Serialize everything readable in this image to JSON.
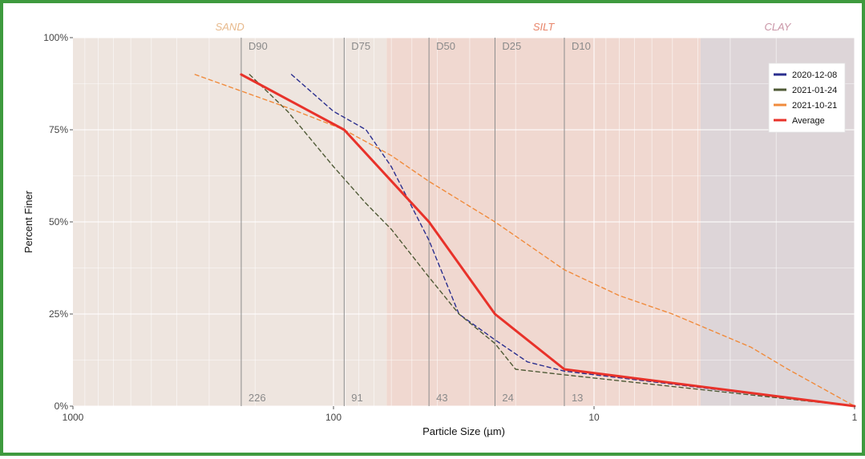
{
  "chart_data": {
    "type": "line",
    "xlabel": "Particle Size (µm)",
    "ylabel": "Percent Finer",
    "x_scale": "log",
    "x_reversed": true,
    "xlim": [
      1000,
      1
    ],
    "ylim": [
      0,
      100
    ],
    "x_ticks": [
      {
        "value": 1000,
        "label": "1000"
      },
      {
        "value": 100,
        "label": "100"
      },
      {
        "value": 10,
        "label": "10"
      },
      {
        "value": 1,
        "label": "1"
      }
    ],
    "y_ticks": [
      {
        "value": 0,
        "label": "0%"
      },
      {
        "value": 25,
        "label": "25%"
      },
      {
        "value": 50,
        "label": "50%"
      },
      {
        "value": 75,
        "label": "75%"
      },
      {
        "value": 100,
        "label": "100%"
      }
    ],
    "zones": [
      {
        "label": "SAND",
        "from": 1000,
        "to": 62.5,
        "color": "#eee5df",
        "label_color": "#e7b98c"
      },
      {
        "label": "SILT",
        "from": 62.5,
        "to": 3.9,
        "color": "#f0d8d0",
        "label_color": "#e8856a"
      },
      {
        "label": "CLAY",
        "from": 3.9,
        "to": 1,
        "color": "#ddd5d8",
        "label_color": "#c995a6"
      }
    ],
    "d_lines": [
      {
        "name": "D90",
        "value": 226,
        "label": "226"
      },
      {
        "name": "D75",
        "value": 91,
        "label": "91"
      },
      {
        "name": "D50",
        "value": 43,
        "label": "43"
      },
      {
        "name": "D25",
        "value": 24,
        "label": "24"
      },
      {
        "name": "D10",
        "value": 13,
        "label": "13"
      }
    ],
    "series": [
      {
        "name": "2020-12-08",
        "color": "#2b2f8f",
        "dash": true,
        "points": [
          [
            145,
            90
          ],
          [
            100,
            80
          ],
          [
            75,
            75
          ],
          [
            60,
            65
          ],
          [
            43,
            45
          ],
          [
            33,
            25
          ],
          [
            24,
            18
          ],
          [
            18,
            12
          ],
          [
            13,
            9.5
          ],
          [
            1,
            0
          ]
        ]
      },
      {
        "name": "2021-01-24",
        "color": "#4f5a36",
        "dash": true,
        "points": [
          [
            210,
            90
          ],
          [
            150,
            80
          ],
          [
            100,
            65
          ],
          [
            75,
            55
          ],
          [
            60,
            48
          ],
          [
            43,
            35
          ],
          [
            33,
            25
          ],
          [
            24,
            17
          ],
          [
            20,
            10
          ],
          [
            13,
            8.5
          ],
          [
            1,
            0
          ]
        ]
      },
      {
        "name": "2021-10-21",
        "color": "#f08b3c",
        "dash": true,
        "points": [
          [
            340,
            90
          ],
          [
            150,
            81
          ],
          [
            91,
            75
          ],
          [
            60,
            68
          ],
          [
            43,
            61
          ],
          [
            24,
            50
          ],
          [
            13,
            37
          ],
          [
            8,
            30
          ],
          [
            5,
            25
          ],
          [
            2.5,
            16
          ],
          [
            1.8,
            10
          ],
          [
            1,
            0
          ]
        ]
      },
      {
        "name": "Average",
        "color": "#e8322a",
        "dash": false,
        "points": [
          [
            226,
            90
          ],
          [
            91,
            75
          ],
          [
            43,
            50
          ],
          [
            24,
            25
          ],
          [
            13,
            10
          ],
          [
            1,
            0
          ]
        ]
      }
    ]
  }
}
